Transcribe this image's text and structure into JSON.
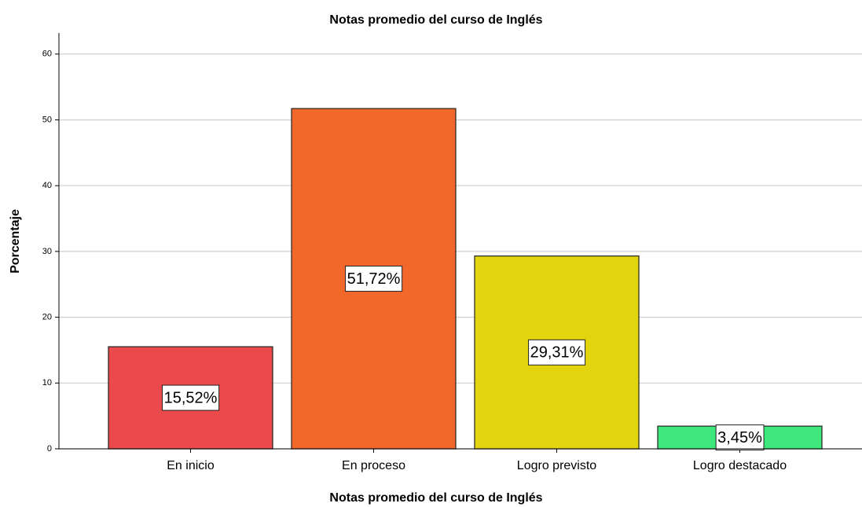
{
  "chart_data": {
    "type": "bar",
    "title": "Notas promedio del curso de Inglés",
    "x_label": "Notas promedio del curso de Inglés",
    "y_label": "Porcentaje",
    "categories": [
      "En inicio",
      "En proceso",
      "Logro previsto",
      "Logro destacado"
    ],
    "values": [
      15.52,
      51.72,
      29.31,
      3.45
    ],
    "value_labels": [
      "15,52%",
      "51,72%",
      "29,31%",
      "3,45%"
    ],
    "colors": [
      "#ea4a4c",
      "#f2682b",
      "#e2d50f",
      "#3ee87c"
    ],
    "ylim": [
      0,
      63.2
    ],
    "yticks": [
      0,
      10,
      20,
      30,
      40,
      50,
      60
    ],
    "grid": true
  }
}
